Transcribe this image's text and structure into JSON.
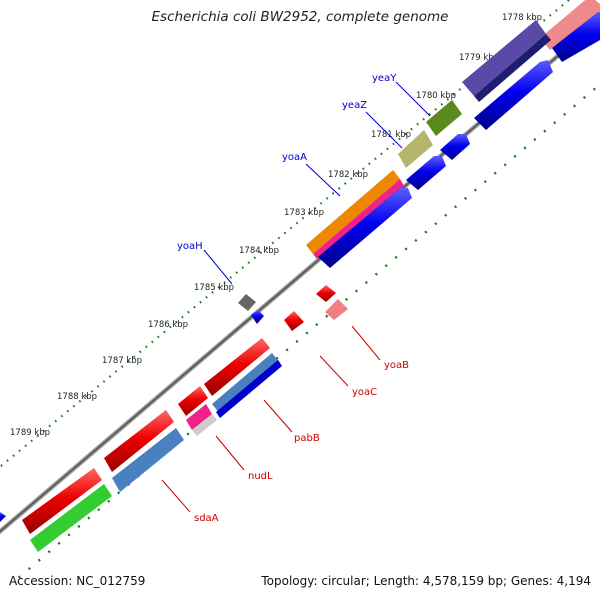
{
  "title": "Escherichia coli BW2952, complete genome",
  "footer": {
    "accession": "Accession: NC_012759",
    "summary": "Topology: circular; Length: 4,578,159 bp; Genes: 4,194"
  },
  "ticks": [
    "1778 kbp",
    "1779 kbp",
    "1780 kbp",
    "1781 kbp",
    "1782 kbp",
    "1783 kbp",
    "1784 kbp",
    "1785 kbp",
    "1786 kbp",
    "1787 kbp",
    "1788 kbp",
    "1789 kbp"
  ],
  "gene_labels": {
    "forward": [
      "yeaY",
      "yeaZ",
      "yoaA",
      "yoaH"
    ],
    "reverse": [
      "yoaB",
      "yoaC",
      "pabB",
      "nudL",
      "sdaA"
    ]
  },
  "colors": {
    "forward_label": "#0000cc",
    "reverse_label": "#cc0000",
    "backbone": "#707070",
    "tick": "#228822",
    "cds": "#0000ee",
    "gene": "#ee0000"
  }
}
